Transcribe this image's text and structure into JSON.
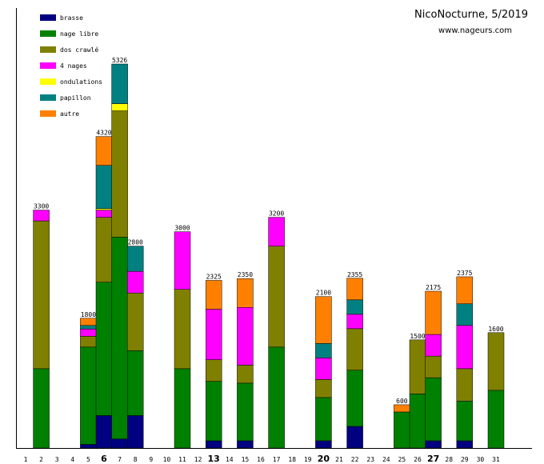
{
  "chart_data": {
    "type": "bar",
    "stacked": true,
    "title": "NicoNocturne, 5/2019",
    "subtitle": "www.nageurs.com",
    "ylim": [
      0,
      5500
    ],
    "legend_position": "top-left",
    "series_order": [
      "brasse",
      "nage libre",
      "dos crawlé",
      "4 nages",
      "ondulations",
      "papillon",
      "autre"
    ],
    "colors": {
      "brasse": "#000080",
      "nage libre": "#008000",
      "dos crawlé": "#808000",
      "4 nages": "#ff00ff",
      "ondulations": "#ffff00",
      "papillon": "#008080",
      "autre": "#ff8000"
    },
    "days": [
      "1",
      "2",
      "3",
      "4",
      "5",
      "6",
      "7",
      "8",
      "9",
      "10",
      "11",
      "12",
      "13",
      "14",
      "15",
      "16",
      "17",
      "18",
      "19",
      "20",
      "21",
      "22",
      "23",
      "24",
      "25",
      "26",
      "27",
      "28",
      "29",
      "30",
      "31"
    ],
    "bold_days": [
      "6",
      "13",
      "20",
      "27"
    ],
    "bars": [
      {
        "day": "2",
        "total_label": "3300",
        "segments": {
          "nage libre": 1100,
          "dos crawlé": 2050,
          "4 nages": 150
        }
      },
      {
        "day": "5",
        "total_label": "1800",
        "segments": {
          "brasse": 50,
          "nage libre": 1350,
          "dos crawlé": 150,
          "4 nages": 100,
          "papillon": 50,
          "autre": 100
        }
      },
      {
        "day": "6",
        "total_label": "4320",
        "segments": {
          "brasse": 450,
          "nage libre": 1850,
          "dos crawlé": 900,
          "4 nages": 100,
          "ondulations": 20,
          "papillon": 600,
          "autre": 400
        }
      },
      {
        "day": "7",
        "total_label": "5326",
        "segments": {
          "brasse": 126,
          "nage libre": 2800,
          "dos crawlé": 1750,
          "ondulations": 100,
          "papillon": 550
        }
      },
      {
        "day": "8",
        "total_label": "2800",
        "segments": {
          "brasse": 450,
          "nage libre": 900,
          "dos crawlé": 800,
          "4 nages": 300,
          "papillon": 350
        }
      },
      {
        "day": "11",
        "total_label": "3000",
        "segments": {
          "nage libre": 1100,
          "dos crawlé": 1100,
          "4 nages": 800
        }
      },
      {
        "day": "13",
        "total_label": "2325",
        "segments": {
          "brasse": 100,
          "nage libre": 825,
          "dos crawlé": 300,
          "4 nages": 700,
          "autre": 400
        }
      },
      {
        "day": "15",
        "total_label": "2350",
        "segments": {
          "brasse": 100,
          "nage libre": 800,
          "dos crawlé": 250,
          "4 nages": 800,
          "autre": 400
        }
      },
      {
        "day": "17",
        "total_label": "3200",
        "segments": {
          "nage libre": 1400,
          "dos crawlé": 1400,
          "4 nages": 400
        }
      },
      {
        "day": "20",
        "total_label": "2100",
        "segments": {
          "brasse": 100,
          "nage libre": 600,
          "dos crawlé": 250,
          "4 nages": 300,
          "papillon": 200,
          "autre": 650
        }
      },
      {
        "day": "22",
        "total_label": "2355",
        "segments": {
          "brasse": 300,
          "nage libre": 780,
          "dos crawlé": 575,
          "4 nages": 200,
          "papillon": 200,
          "autre": 300
        }
      },
      {
        "day": "25",
        "total_label": "600",
        "segments": {
          "nage libre": 500,
          "autre": 100
        }
      },
      {
        "day": "26",
        "total_label": "1500",
        "segments": {
          "nage libre": 750,
          "dos crawlé": 750
        }
      },
      {
        "day": "27",
        "total_label": "2175",
        "segments": {
          "brasse": 100,
          "nage libre": 875,
          "dos crawlé": 300,
          "4 nages": 300,
          "autre": 600
        }
      },
      {
        "day": "29",
        "total_label": "2375",
        "segments": {
          "brasse": 100,
          "nage libre": 550,
          "dos crawlé": 450,
          "4 nages": 600,
          "papillon": 300,
          "autre": 375
        }
      },
      {
        "day": "31",
        "total_label": "1600",
        "segments": {
          "nage libre": 800,
          "dos crawlé": 800
        }
      }
    ]
  }
}
